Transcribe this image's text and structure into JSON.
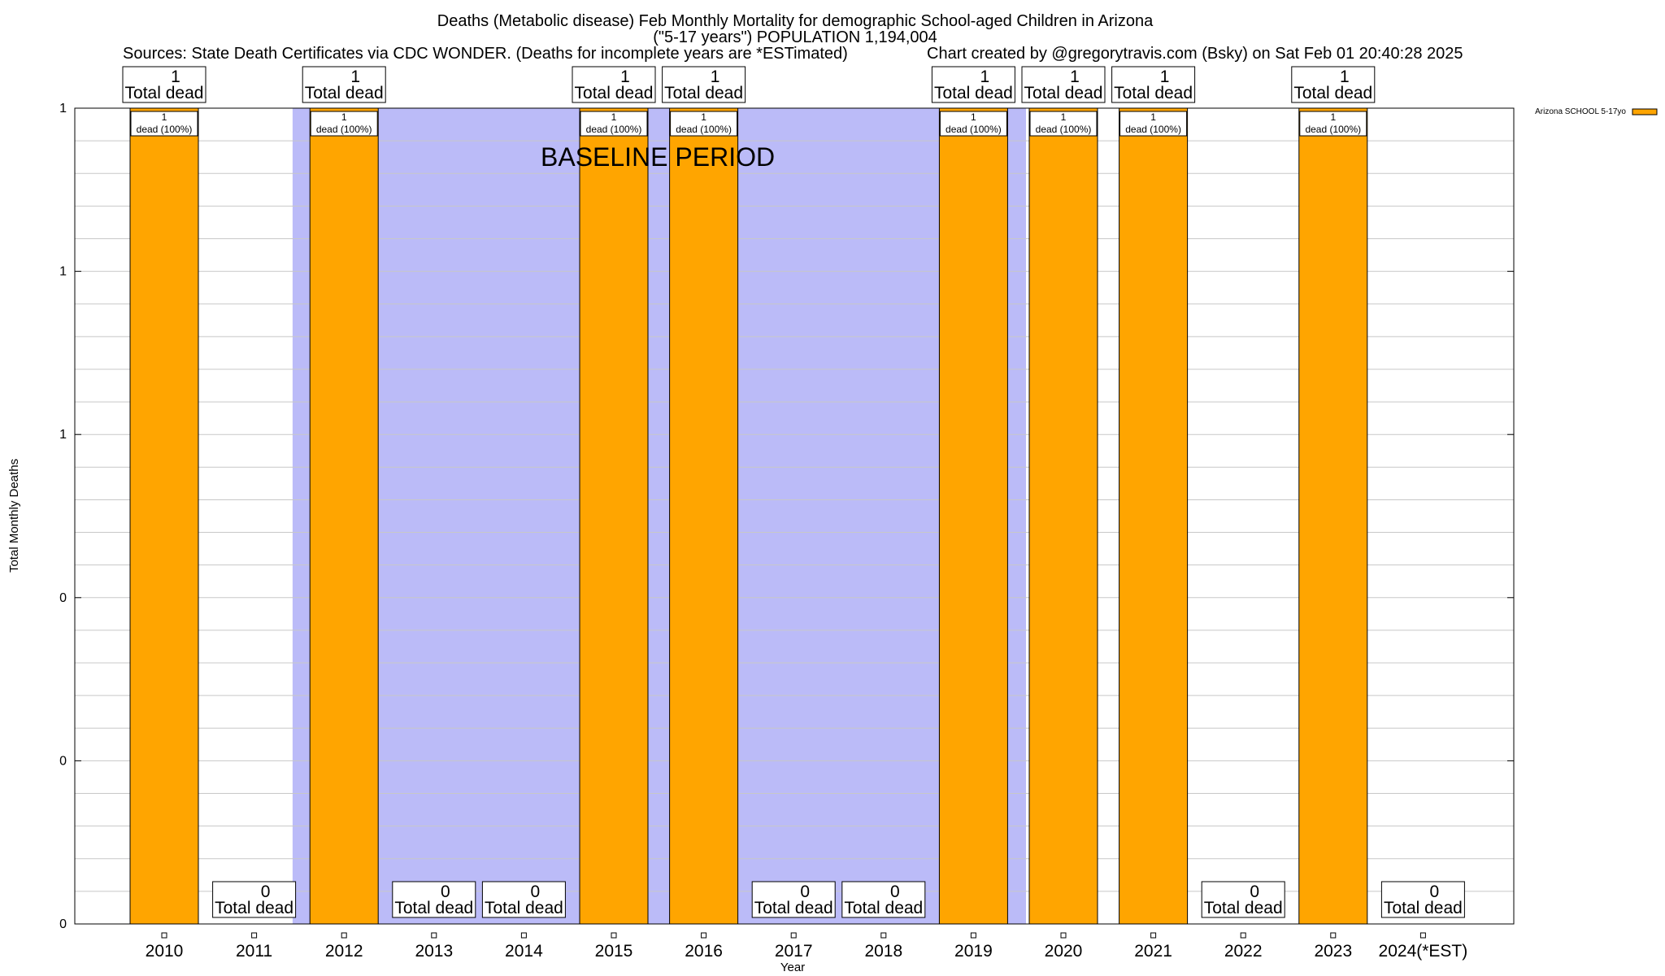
{
  "title": {
    "line1": "Deaths (Metabolic disease) Feb Monthly Mortality for demographic School-aged Children in Arizona",
    "line2": "(\"5-17 years\") POPULATION 1,194,004",
    "sources": "Sources: State Death Certificates via CDC WONDER. (Deaths for incomplete years are *ESTimated)",
    "credit": "Chart created by @gregorytravis.com (Bsky) on Sat Feb 01 20:40:28 2025"
  },
  "colors": {
    "bar": "#FFA500",
    "baseline_shade": "#BBBBF8",
    "grid": "#c8c8c8"
  },
  "chart_data": {
    "type": "bar",
    "xlabel": "Year",
    "ylabel": "Total Monthly Deaths",
    "ylim": [
      0,
      1
    ],
    "y_tick_labels": [
      "0",
      "0",
      "0",
      "1",
      "1",
      "1"
    ],
    "categories": [
      "2010",
      "2011",
      "2012",
      "2013",
      "2014",
      "2015",
      "2016",
      "2017",
      "2018",
      "2019",
      "2020",
      "2021",
      "2022",
      "2023",
      "2024(*EST)"
    ],
    "series": [
      {
        "name": "Arizona SCHOOL 5-17yo",
        "values": [
          1,
          0,
          1,
          0,
          0,
          1,
          1,
          0,
          0,
          1,
          1,
          1,
          0,
          1,
          0
        ]
      }
    ],
    "bar_labels": {
      "total_label": "Total dead",
      "inner_label": "dead (100%)"
    },
    "baseline_period": {
      "label": "BASELINE PERIOD",
      "start_year": 2012,
      "end_year": 2020
    },
    "grid": true,
    "legend_position": "top-right"
  }
}
